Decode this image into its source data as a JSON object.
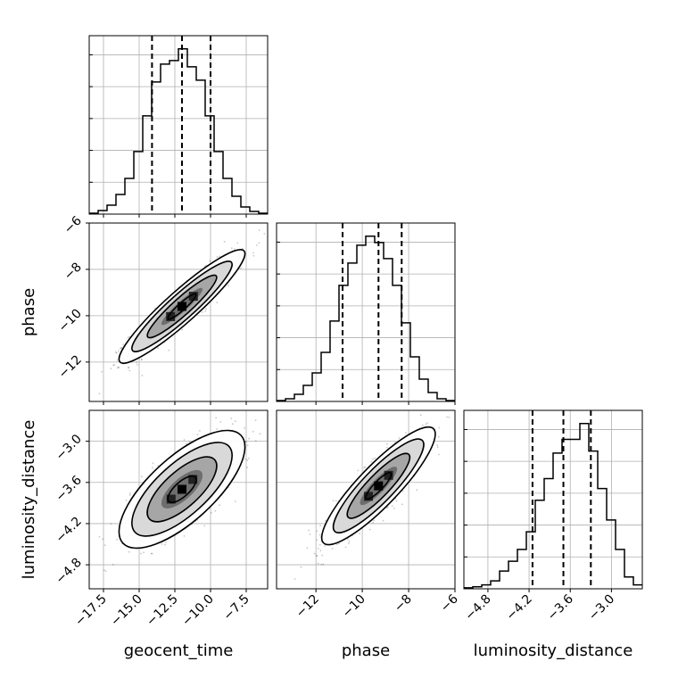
{
  "chart_data": {
    "type": "corner",
    "parameters": [
      "geocent_time",
      "phase",
      "luminosity_distance"
    ],
    "grid": true,
    "quantile_lines": "dashed",
    "ranges": {
      "geocent_time": [
        -18.5,
        -6.0
      ],
      "phase": [
        -13.7,
        -6.0
      ],
      "luminosity_distance": [
        -5.15,
        -2.55
      ]
    },
    "ticks": {
      "geocent_time": [
        -17.5,
        -15.0,
        -12.5,
        -10.0,
        -7.5
      ],
      "phase": [
        -12,
        -10,
        -8,
        -6
      ],
      "luminosity_distance": [
        -4.8,
        -4.2,
        -3.6,
        -3.0
      ]
    },
    "tick_labels": {
      "geocent_time": [
        "−17.5",
        "−15.0",
        "−12.5",
        "−10.0",
        "−7.5"
      ],
      "phase_x": [
        "−12",
        "−10",
        "−8",
        "−6"
      ],
      "phase_y": [
        "−6",
        "−8",
        "−10",
        "−12"
      ],
      "luminosity_distance_x": [
        "−4.8",
        "−4.2",
        "−3.6",
        "−3.0"
      ],
      "luminosity_distance_y": [
        "−3.0",
        "−3.6",
        "−4.2",
        "−4.8"
      ]
    },
    "axis_labels": {
      "x": [
        "geocent_time",
        "phase",
        "luminosity_distance"
      ],
      "y": [
        "phase",
        "luminosity_distance"
      ]
    },
    "histograms": [
      {
        "parameter": "geocent_time",
        "bins": [
          -18.5,
          -17.875,
          -17.25,
          -16.625,
          -16.0,
          -15.375,
          -14.75,
          -14.125,
          -13.5,
          -12.875,
          -12.25,
          -11.625,
          -11.0,
          -10.375,
          -9.75,
          -9.125,
          -8.5,
          -7.875,
          -7.25,
          -6.625,
          -6.0
        ],
        "counts": [
          1,
          4,
          10,
          22,
          40,
          70,
          110,
          148,
          168,
          172,
          185,
          165,
          150,
          110,
          70,
          40,
          20,
          8,
          3,
          1
        ],
        "quantiles": [
          -14.1,
          -12.0,
          -10.0
        ]
      },
      {
        "parameter": "phase",
        "bins": [
          -13.7,
          -13.315,
          -12.93,
          -12.545,
          -12.16,
          -11.775,
          -11.39,
          -11.005,
          -10.62,
          -10.235,
          -9.85,
          -9.465,
          -9.08,
          -8.695,
          -8.31,
          -7.925,
          -7.54,
          -7.155,
          -6.77,
          -6.385,
          -6.0
        ],
        "counts": [
          1,
          3,
          8,
          18,
          32,
          55,
          90,
          130,
          155,
          175,
          185,
          178,
          160,
          130,
          88,
          50,
          25,
          10,
          3,
          1
        ],
        "quantiles": [
          -10.85,
          -9.3,
          -8.3
        ]
      },
      {
        "parameter": "luminosity_distance",
        "bins": [
          -5.15,
          -5.02,
          -4.89,
          -4.76,
          -4.63,
          -4.5,
          -4.37,
          -4.24,
          -4.11,
          -3.98,
          -3.85,
          -3.72,
          -3.59,
          -3.46,
          -3.33,
          -3.2,
          -3.07,
          -2.94,
          -2.81,
          -2.68,
          -2.55
        ],
        "counts": [
          1,
          2,
          4,
          8,
          18,
          28,
          40,
          58,
          90,
          112,
          138,
          152,
          152,
          168,
          140,
          102,
          70,
          40,
          12,
          4
        ],
        "quantiles": [
          -4.15,
          -3.7,
          -3.3
        ]
      }
    ],
    "joint": [
      {
        "x": "geocent_time",
        "y": "phase",
        "center": [
          -12.0,
          -9.6
        ],
        "sigma": [
          1.8,
          1.0
        ],
        "correlation": 0.93
      },
      {
        "x": "geocent_time",
        "y": "luminosity_distance",
        "center": [
          -12.0,
          -3.7
        ],
        "sigma": [
          1.8,
          0.35
        ],
        "correlation": 0.72
      },
      {
        "x": "phase",
        "y": "luminosity_distance",
        "center": [
          -9.3,
          -3.65
        ],
        "sigma": [
          1.0,
          0.35
        ],
        "correlation": 0.88
      }
    ]
  }
}
